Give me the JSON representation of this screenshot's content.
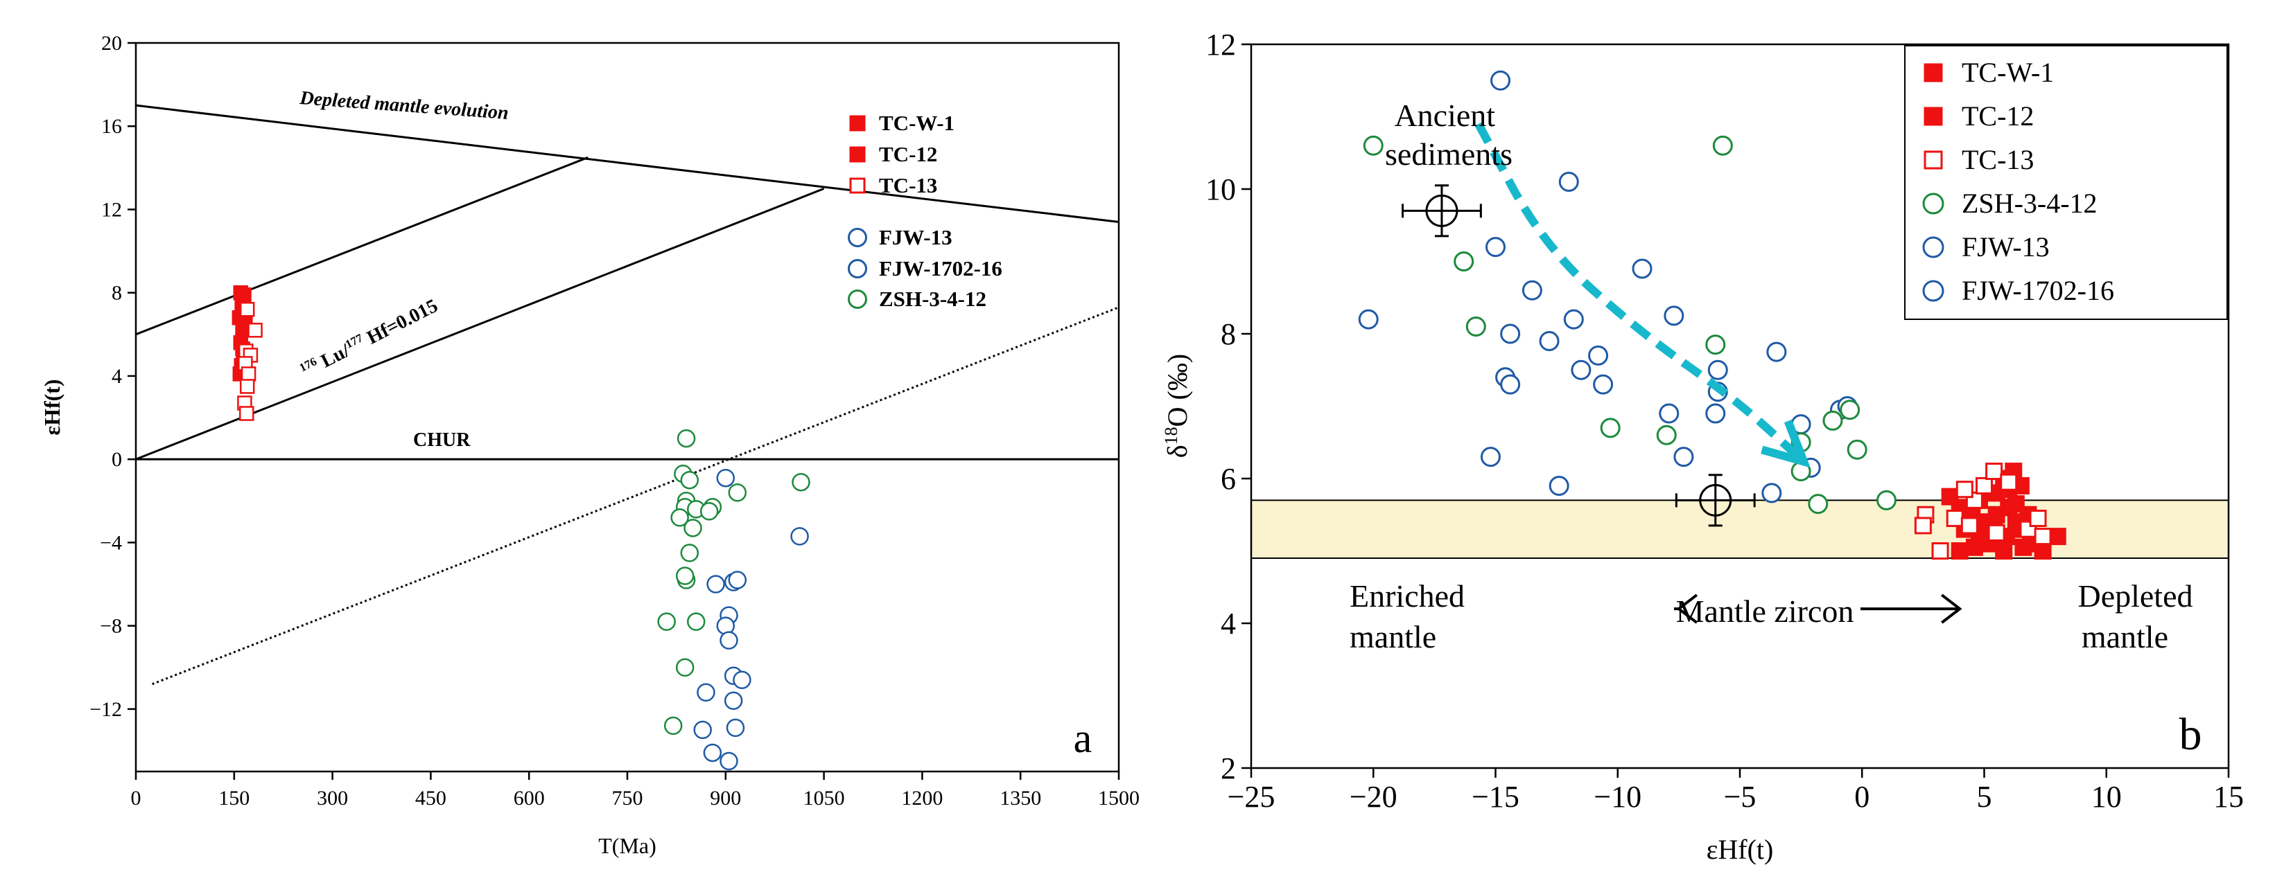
{
  "chart_data": [
    {
      "panel": "a",
      "type": "scatter",
      "xlabel": "T(Ma)",
      "ylabel": "εHf(t)",
      "xlim": [
        0,
        1500
      ],
      "ylim": [
        -15,
        20
      ],
      "xticks": [
        "0",
        "150",
        "300",
        "450",
        "600",
        "750",
        "900",
        "1050",
        "1200",
        "1350",
        "1500"
      ],
      "yticks": [
        "−12",
        "−8",
        "−4",
        "0",
        "4",
        "8",
        "12",
        "16",
        "20"
      ],
      "panel_label": "a",
      "line_labels": {
        "depleted": "Depleted mantle evolution",
        "lu_hf_sup1": "176",
        "lu_hf_mid": " Lu/",
        "lu_hf_sup2": "177",
        "lu_hf_end": " Hf=0.015",
        "chur": "CHUR"
      },
      "lines": [
        {
          "name": "Depleted mantle evolution",
          "x": [
            0,
            1500
          ],
          "y": [
            17.0,
            11.4
          ]
        },
        {
          "name": "CHUR",
          "x": [
            0,
            1500
          ],
          "y": [
            0,
            0
          ]
        },
        {
          "name": "evolution-line-1",
          "x": [
            0,
            690
          ],
          "y": [
            6.0,
            14.5
          ]
        },
        {
          "name": "evolution-line-2",
          "x": [
            0,
            1050
          ],
          "y": [
            0,
            13.0
          ]
        },
        {
          "name": "dotted-line",
          "x": [
            25,
            1500
          ],
          "y": [
            -10.8,
            7.3
          ]
        }
      ],
      "legend": [
        {
          "label": "TC-W-1",
          "marker": "square",
          "filled": true,
          "color": "#ee1111"
        },
        {
          "label": "TC-12",
          "marker": "square",
          "filled": true,
          "color": "#ee1111"
        },
        {
          "label": "TC-13",
          "marker": "square",
          "filled": false,
          "color": "#ee1111"
        },
        {
          "label": "FJW-13",
          "marker": "circle",
          "filled": false,
          "color": "#1f5aa6"
        },
        {
          "label": "FJW-1702-16",
          "marker": "circle",
          "filled": false,
          "color": "#1f5aa6"
        },
        {
          "label": "ZSH-3-4-12",
          "marker": "circle",
          "filled": false,
          "color": "#1d8a3c"
        }
      ],
      "series": [
        {
          "name": "TC-W-1",
          "marker": "square",
          "filled": true,
          "color": "#ee1111",
          "x": [
            160,
            162,
            158,
            163,
            160,
            164,
            161,
            159
          ],
          "y": [
            8.0,
            7.4,
            6.8,
            6.2,
            5.6,
            5.0,
            4.5,
            4.1
          ]
        },
        {
          "name": "TC-12",
          "marker": "square",
          "filled": true,
          "color": "#ee1111",
          "x": [
            165,
            167,
            163,
            166
          ],
          "y": [
            7.9,
            6.6,
            5.3,
            4.3
          ]
        },
        {
          "name": "TC-13",
          "marker": "square",
          "filled": false,
          "color": "#ee1111",
          "x": [
            170,
            182,
            168,
            175,
            167,
            172,
            170,
            166,
            169
          ],
          "y": [
            7.2,
            6.2,
            5.2,
            5.0,
            4.6,
            4.1,
            3.5,
            2.7,
            2.2
          ]
        },
        {
          "name": "ZSH-3-4-12",
          "marker": "circle",
          "filled": false,
          "color": "#1d8a3c",
          "x": [
            840,
            835,
            845,
            840,
            838,
            855,
            830,
            880,
            875,
            850,
            845,
            840,
            838,
            810,
            855,
            838,
            820,
            1015,
            918
          ],
          "y": [
            1.0,
            -0.7,
            -1.0,
            -2.0,
            -2.3,
            -2.4,
            -2.8,
            -2.3,
            -2.5,
            -3.3,
            -4.5,
            -5.8,
            -5.6,
            -7.8,
            -7.8,
            -10.0,
            -12.8,
            -1.1,
            -1.6
          ]
        },
        {
          "name": "FJW-13 / FJW-1702-16",
          "marker": "circle",
          "filled": false,
          "color": "#1f5aa6",
          "x": [
            900,
            1013,
            885,
            912,
            918,
            905,
            900,
            905,
            912,
            925,
            912,
            870,
            915,
            865,
            880,
            905
          ],
          "y": [
            -0.9,
            -3.7,
            -6.0,
            -5.9,
            -5.8,
            -7.5,
            -8.0,
            -8.7,
            -10.4,
            -10.6,
            -11.6,
            -11.2,
            -12.9,
            -13.0,
            -14.1,
            -14.5
          ]
        }
      ]
    },
    {
      "panel": "b",
      "type": "scatter",
      "xlabel": "εHf(t)",
      "ylabel": "δ18O (‰)",
      "ylabel_parts": {
        "delta": "δ",
        "sup": "18",
        "rest": "O (‰)"
      },
      "xlim": [
        -25,
        15
      ],
      "ylim": [
        2,
        12
      ],
      "xticks": [
        "−25",
        "−20",
        "−15",
        "−10",
        "−5",
        "0",
        "5",
        "10",
        "15"
      ],
      "yticks": [
        "2",
        "4",
        "6",
        "8",
        "10",
        "12"
      ],
      "panel_label": "b",
      "mantle_band": [
        4.9,
        5.7
      ],
      "annotations": {
        "ancient_1": "Ancient",
        "ancient_2": "sediments",
        "enriched_1": "Enriched",
        "enriched_2": "mantle",
        "mantle_zircon": "Mantle zircon",
        "depleted_1": "Depleted",
        "depleted_2": "mantle"
      },
      "error_points": [
        {
          "x": -17.2,
          "y": 9.7,
          "xerr": 1.6,
          "yerr": 0.35
        },
        {
          "x": -6.0,
          "y": 5.7,
          "xerr": 1.6,
          "yerr": 0.35
        }
      ],
      "trend_arrow": {
        "x": [
          -15.7,
          -13.0,
          -9.0,
          -5.2,
          -2.6
        ],
        "y": [
          10.9,
          9.2,
          8.0,
          7.1,
          6.3
        ],
        "color": "#18b8cc"
      },
      "mantle_arrow": {
        "from": -7.5,
        "to": 4.0,
        "y": 4.2
      },
      "legend": [
        {
          "label": "TC-W-1",
          "marker": "square",
          "filled": true,
          "color": "#ee1111"
        },
        {
          "label": "TC-12",
          "marker": "square",
          "filled": true,
          "color": "#ee1111"
        },
        {
          "label": "TC-13",
          "marker": "square",
          "filled": false,
          "color": "#ee1111"
        },
        {
          "label": "ZSH-3-4-12",
          "marker": "circle",
          "filled": false,
          "color": "#1d8a3c"
        },
        {
          "label": "FJW-13",
          "marker": "circle",
          "filled": false,
          "color": "#1f5aa6"
        },
        {
          "label": "FJW-1702-16",
          "marker": "circle",
          "filled": false,
          "color": "#1f5aa6"
        }
      ],
      "series": [
        {
          "name": "FJW-13 / FJW-1702-16",
          "marker": "circle",
          "filled": false,
          "color": "#1f5aa6",
          "x": [
            -14.8,
            -12.0,
            -20.2,
            -15.0,
            -13.5,
            -14.4,
            -12.8,
            -14.6,
            -14.4,
            -11.8,
            -11.5,
            -10.8,
            -10.6,
            -9.0,
            -7.7,
            -3.5,
            -5.9,
            -5.9,
            -6.0,
            -7.9,
            -7.3,
            -15.2,
            -12.4,
            -3.7,
            -2.1,
            -2.5,
            -0.9,
            -0.6
          ],
          "y": [
            11.5,
            10.1,
            8.2,
            9.2,
            8.6,
            8.0,
            7.9,
            7.4,
            7.3,
            8.2,
            7.5,
            7.7,
            7.3,
            8.9,
            8.25,
            7.75,
            7.5,
            7.2,
            6.9,
            6.9,
            6.3,
            6.3,
            5.9,
            5.8,
            6.15,
            6.75,
            6.95,
            7.0
          ]
        },
        {
          "name": "ZSH-3-4-12",
          "marker": "circle",
          "filled": false,
          "color": "#1d8a3c",
          "x": [
            -20.0,
            -16.3,
            -15.8,
            -5.7,
            -6.0,
            -10.3,
            -8.0,
            -2.5,
            -1.2,
            -0.5,
            -0.2,
            -2.5,
            -1.8,
            1.0
          ],
          "y": [
            10.6,
            9.0,
            8.1,
            10.6,
            7.85,
            6.7,
            6.6,
            6.1,
            6.8,
            6.95,
            6.4,
            6.5,
            5.65,
            5.7
          ]
        },
        {
          "name": "TC-W-1 / TC-12",
          "marker": "square",
          "filled": true,
          "color": "#ee1111",
          "x": [
            4.0,
            4.8,
            5.5,
            5.8,
            6.2,
            6.5,
            4.5,
            5.0,
            5.5,
            6.0,
            6.3,
            6.8,
            4.2,
            4.8,
            5.4,
            5.9,
            6.4,
            6.9,
            7.2,
            4.0,
            4.6,
            5.2,
            5.8,
            6.6,
            7.0,
            7.4,
            8.0,
            6.0,
            3.6,
            6.3
          ],
          "y": [
            5.6,
            5.7,
            5.8,
            6.0,
            6.1,
            5.9,
            5.5,
            5.4,
            5.5,
            5.6,
            5.4,
            5.5,
            5.3,
            5.2,
            5.3,
            5.2,
            5.3,
            5.2,
            5.1,
            5.0,
            5.05,
            5.1,
            5.0,
            5.05,
            5.1,
            5.0,
            5.2,
            5.85,
            5.75,
            5.65
          ]
        },
        {
          "name": "TC-13",
          "marker": "square",
          "filled": false,
          "color": "#ee1111",
          "x": [
            2.6,
            2.5,
            3.2,
            3.8,
            4.6,
            5.0,
            5.4,
            6.0,
            4.4,
            5.5,
            6.8,
            7.2,
            7.4,
            4.2
          ],
          "y": [
            5.5,
            5.35,
            5.0,
            5.45,
            5.7,
            5.9,
            6.1,
            5.95,
            5.35,
            5.25,
            5.3,
            5.45,
            5.2,
            5.85
          ]
        }
      ]
    }
  ]
}
